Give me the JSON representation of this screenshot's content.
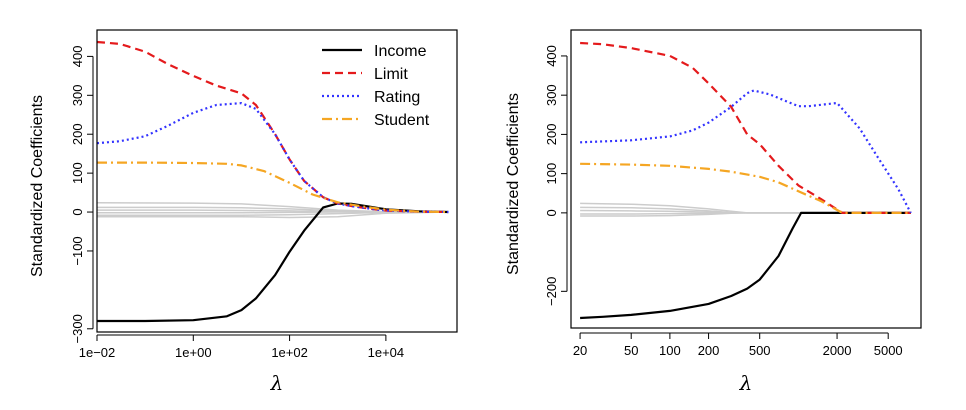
{
  "chart_data": [
    {
      "type": "line",
      "xscale": "log10",
      "xlim": [
        0.01,
        300000
      ],
      "ylim": [
        -300,
        440
      ],
      "ylabel": "Standardized Coefficients",
      "xlabel": "λ",
      "xticks": [
        0.01,
        1,
        100,
        10000
      ],
      "xticklabels": [
        "1e−02",
        "1e+00",
        "1e+02",
        "1e+04"
      ],
      "yticks": [
        -300,
        -100,
        0,
        100,
        200,
        300,
        400
      ],
      "yticklabels": [
        "−300",
        "−100",
        "0",
        "100",
        "200",
        "300",
        "400"
      ],
      "legend": {
        "position": "top-right"
      },
      "series": [
        {
          "name": "Income",
          "color": "#000000",
          "dash": "solid",
          "width": 2.2,
          "in_legend": true,
          "x": [
            0.01,
            0.1,
            1,
            5,
            10,
            20,
            50,
            100,
            200,
            500,
            1000,
            2000,
            5000,
            10000,
            50000,
            200000
          ],
          "y": [
            -280,
            -280,
            -278,
            -268,
            -252,
            -222,
            -162,
            -102,
            -48,
            12,
            22,
            21,
            13,
            7,
            2,
            0
          ]
        },
        {
          "name": "Limit",
          "color": "#e41a1c",
          "dash": "8,5",
          "width": 2.2,
          "in_legend": true,
          "x": [
            0.01,
            0.03,
            0.1,
            0.3,
            1,
            3,
            10,
            20,
            50,
            100,
            200,
            500,
            1000,
            2000,
            5000,
            10000,
            50000,
            200000
          ],
          "y": [
            437,
            432,
            412,
            380,
            350,
            325,
            305,
            275,
            200,
            135,
            80,
            38,
            22,
            15,
            8,
            4,
            1,
            0
          ]
        },
        {
          "name": "Rating",
          "color": "#3333ff",
          "dash": "2,3",
          "width": 2.2,
          "in_legend": true,
          "x": [
            0.01,
            0.03,
            0.1,
            0.3,
            1,
            3,
            10,
            20,
            50,
            100,
            200,
            500,
            1000,
            2000,
            5000,
            10000,
            50000,
            200000
          ],
          "y": [
            177,
            182,
            195,
            222,
            255,
            275,
            280,
            265,
            200,
            135,
            80,
            38,
            22,
            15,
            8,
            4,
            1,
            0
          ]
        },
        {
          "name": "Student",
          "color": "#f5a623",
          "dash": "10,4,2,4",
          "width": 2.2,
          "in_legend": true,
          "x": [
            0.01,
            0.1,
            1,
            5,
            10,
            30,
            100,
            300,
            1000,
            3000,
            10000,
            50000,
            200000
          ],
          "y": [
            127,
            127,
            126,
            124,
            120,
            105,
            75,
            45,
            25,
            15,
            6,
            1,
            0
          ]
        },
        {
          "name": "",
          "color": "#cccccc",
          "dash": "solid",
          "width": 1.5,
          "in_legend": false,
          "x": [
            0.01,
            1,
            10,
            100,
            1000,
            10000,
            200000
          ],
          "y": [
            24,
            23,
            21,
            14,
            5,
            1,
            0
          ]
        },
        {
          "name": "",
          "color": "#cccccc",
          "dash": "solid",
          "width": 1.5,
          "in_legend": false,
          "x": [
            0.01,
            1,
            10,
            100,
            1000,
            10000,
            200000
          ],
          "y": [
            12,
            12,
            11,
            8,
            3,
            1,
            0
          ]
        },
        {
          "name": "",
          "color": "#cccccc",
          "dash": "solid",
          "width": 1.5,
          "in_legend": false,
          "x": [
            0.01,
            1,
            10,
            100,
            1000,
            10000,
            200000
          ],
          "y": [
            5,
            5,
            4,
            3,
            1,
            0,
            0
          ]
        },
        {
          "name": "",
          "color": "#cccccc",
          "dash": "solid",
          "width": 1.5,
          "in_legend": false,
          "x": [
            0.01,
            1,
            10,
            100,
            1000,
            10000,
            200000
          ],
          "y": [
            -2,
            -2,
            -2,
            -1,
            0,
            0,
            0
          ]
        },
        {
          "name": "",
          "color": "#cccccc",
          "dash": "solid",
          "width": 1.5,
          "in_legend": false,
          "x": [
            0.01,
            1,
            10,
            100,
            1000,
            10000,
            200000
          ],
          "y": [
            -8,
            -8,
            -8,
            -7,
            -4,
            -1,
            0
          ]
        },
        {
          "name": "",
          "color": "#cccccc",
          "dash": "solid",
          "width": 1.5,
          "in_legend": false,
          "x": [
            0.01,
            1,
            10,
            100,
            1000,
            10000,
            200000
          ],
          "y": [
            -12,
            -12,
            -12,
            -14,
            -12,
            -3,
            0
          ]
        }
      ]
    },
    {
      "type": "line",
      "xscale": "log10",
      "xlim": [
        17,
        9000
      ],
      "ylim": [
        -290,
        440
      ],
      "ylabel": "Standardized Coefficients",
      "xlabel": "λ",
      "xticks": [
        20,
        50,
        100,
        200,
        500,
        2000,
        5000
      ],
      "xticklabels": [
        "20",
        "50",
        "100",
        "200",
        "500",
        "2000",
        "5000"
      ],
      "yticks": [
        -200,
        0,
        100,
        200,
        300,
        400
      ],
      "yticklabels": [
        "−200",
        "0",
        "100",
        "200",
        "300",
        "400"
      ],
      "series": [
        {
          "name": "Income",
          "color": "#000000",
          "dash": "solid",
          "width": 2.2,
          "x": [
            20,
            30,
            50,
            100,
            200,
            300,
            400,
            500,
            700,
            900,
            1050,
            2000,
            5000,
            7500
          ],
          "y": [
            -268,
            -265,
            -260,
            -250,
            -232,
            -212,
            -193,
            -170,
            -110,
            -40,
            0,
            0,
            0,
            0
          ]
        },
        {
          "name": "Limit",
          "color": "#e41a1c",
          "dash": "8,5",
          "width": 2.2,
          "x": [
            20,
            30,
            50,
            100,
            150,
            200,
            300,
            400,
            500,
            700,
            1000,
            1500,
            2200,
            3000,
            5000,
            7500
          ],
          "y": [
            433,
            430,
            420,
            400,
            370,
            330,
            270,
            200,
            175,
            120,
            70,
            35,
            0,
            0,
            0,
            0
          ]
        },
        {
          "name": "Rating",
          "color": "#3333ff",
          "dash": "2,3",
          "width": 2.2,
          "x": [
            20,
            50,
            100,
            150,
            200,
            300,
            400,
            450,
            600,
            800,
            1000,
            1200,
            2000,
            3000,
            4000,
            6000,
            7500
          ],
          "y": [
            180,
            185,
            195,
            210,
            230,
            270,
            305,
            312,
            302,
            285,
            272,
            272,
            280,
            215,
            150,
            60,
            0
          ]
        },
        {
          "name": "Student",
          "color": "#f5a623",
          "dash": "10,4,2,4",
          "width": 2.2,
          "x": [
            20,
            50,
            100,
            200,
            300,
            500,
            700,
            1000,
            1500,
            2200,
            3000,
            7500
          ],
          "y": [
            125,
            123,
            120,
            112,
            105,
            92,
            78,
            55,
            30,
            0,
            0,
            0
          ]
        },
        {
          "name": "",
          "color": "#cccccc",
          "dash": "solid",
          "width": 1.5,
          "x": [
            20,
            50,
            100,
            200,
            300,
            400,
            500,
            7500
          ],
          "y": [
            24,
            22,
            18,
            10,
            4,
            0,
            0,
            0
          ]
        },
        {
          "name": "",
          "color": "#cccccc",
          "dash": "solid",
          "width": 1.5,
          "x": [
            20,
            50,
            100,
            200,
            300,
            400,
            7500
          ],
          "y": [
            14,
            13,
            10,
            5,
            1,
            0,
            0
          ]
        },
        {
          "name": "",
          "color": "#cccccc",
          "dash": "solid",
          "width": 1.5,
          "x": [
            20,
            50,
            100,
            200,
            300,
            7500
          ],
          "y": [
            6,
            5,
            4,
            2,
            0,
            0
          ]
        },
        {
          "name": "",
          "color": "#cccccc",
          "dash": "solid",
          "width": 1.5,
          "x": [
            20,
            50,
            100,
            200,
            300,
            7500
          ],
          "y": [
            -3,
            -3,
            -2,
            -1,
            0,
            0
          ]
        },
        {
          "name": "",
          "color": "#cccccc",
          "dash": "solid",
          "width": 1.5,
          "x": [
            20,
            50,
            100,
            200,
            300,
            400,
            7500
          ],
          "y": [
            -8,
            -8,
            -7,
            -4,
            -1,
            0,
            0
          ]
        }
      ]
    }
  ]
}
